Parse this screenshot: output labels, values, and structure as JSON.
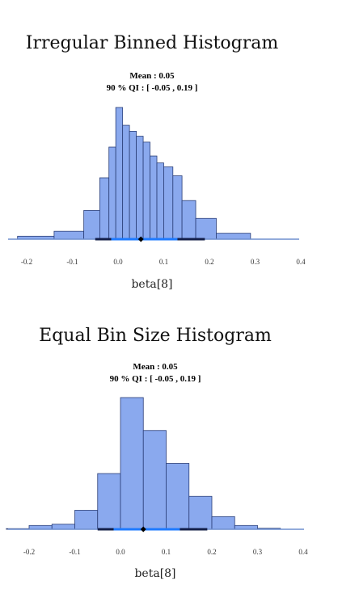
{
  "chart_data": [
    {
      "type": "bar",
      "title": "Irregular Binned Histogram",
      "mean_label": "Mean : 0.05",
      "qi_label": "90 % QI : [ -0.05 , 0.19 ]",
      "xlabel": "beta[8]",
      "xlim": [
        -0.2,
        0.4
      ],
      "xticks": [
        "-0.2",
        "-0.1",
        "0.0",
        "0.1",
        "0.2",
        "0.3",
        "0.4"
      ],
      "bins": [
        {
          "x0": -0.22,
          "x1": -0.14,
          "density": 0.3
        },
        {
          "x0": -0.14,
          "x1": -0.075,
          "density": 0.8
        },
        {
          "x0": -0.075,
          "x1": -0.04,
          "density": 2.9
        },
        {
          "x0": -0.04,
          "x1": -0.02,
          "density": 6.2
        },
        {
          "x0": -0.02,
          "x1": -0.005,
          "density": 9.3
        },
        {
          "x0": -0.005,
          "x1": 0.01,
          "density": 13.3
        },
        {
          "x0": 0.01,
          "x1": 0.025,
          "density": 11.5
        },
        {
          "x0": 0.025,
          "x1": 0.04,
          "density": 10.9
        },
        {
          "x0": 0.04,
          "x1": 0.055,
          "density": 10.4
        },
        {
          "x0": 0.055,
          "x1": 0.07,
          "density": 9.8
        },
        {
          "x0": 0.07,
          "x1": 0.085,
          "density": 8.4
        },
        {
          "x0": 0.085,
          "x1": 0.1,
          "density": 7.7
        },
        {
          "x0": 0.1,
          "x1": 0.12,
          "density": 7.3
        },
        {
          "x0": 0.12,
          "x1": 0.14,
          "density": 6.4
        },
        {
          "x0": 0.14,
          "x1": 0.17,
          "density": 3.9
        },
        {
          "x0": 0.17,
          "x1": 0.215,
          "density": 2.1
        },
        {
          "x0": 0.215,
          "x1": 0.29,
          "density": 0.6
        }
      ],
      "mean": 0.05,
      "qi": [
        -0.05,
        0.19
      ],
      "hdi": [
        -0.015,
        0.13
      ]
    },
    {
      "type": "bar",
      "title": "Equal Bin Size Histogram",
      "mean_label": "Mean : 0.05",
      "qi_label": "90 % QI : [ -0.05 , 0.19 ]",
      "xlabel": "beta[8]",
      "xlim": [
        -0.2,
        0.4
      ],
      "xticks": [
        "-0.2",
        "-0.1",
        "0.0",
        "0.1",
        "0.2",
        "0.3",
        "0.4"
      ],
      "bins": [
        {
          "x0": -0.25,
          "x1": -0.2,
          "density": 0.05
        },
        {
          "x0": -0.2,
          "x1": -0.15,
          "density": 0.3
        },
        {
          "x0": -0.15,
          "x1": -0.1,
          "density": 0.4
        },
        {
          "x0": -0.1,
          "x1": -0.05,
          "density": 1.5
        },
        {
          "x0": -0.05,
          "x1": 0.0,
          "density": 4.4
        },
        {
          "x0": 0.0,
          "x1": 0.05,
          "density": 10.4
        },
        {
          "x0": 0.05,
          "x1": 0.1,
          "density": 7.8
        },
        {
          "x0": 0.1,
          "x1": 0.15,
          "density": 5.2
        },
        {
          "x0": 0.15,
          "x1": 0.2,
          "density": 2.6
        },
        {
          "x0": 0.2,
          "x1": 0.25,
          "density": 1.0
        },
        {
          "x0": 0.25,
          "x1": 0.3,
          "density": 0.3
        },
        {
          "x0": 0.3,
          "x1": 0.35,
          "density": 0.08
        }
      ],
      "mean": 0.05,
      "qi": [
        -0.05,
        0.19
      ],
      "hdi": [
        -0.015,
        0.13
      ]
    }
  ]
}
